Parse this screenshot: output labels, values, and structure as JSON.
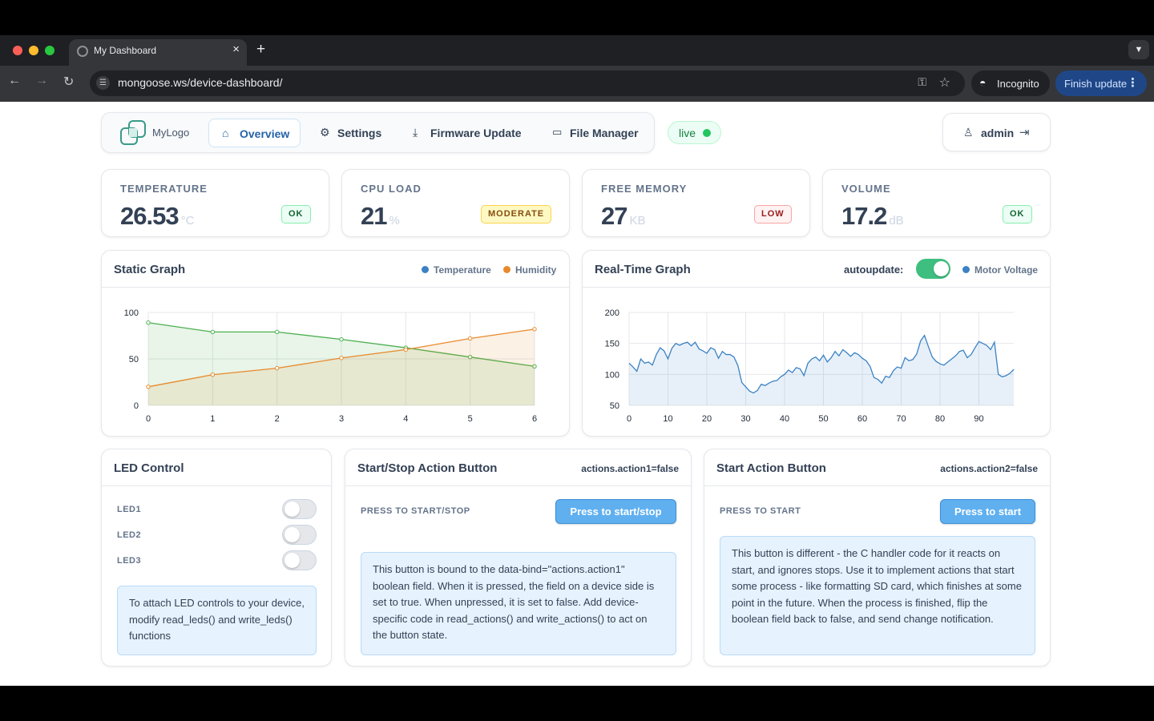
{
  "browser": {
    "tab_title": "My Dashboard",
    "url": "mongoose.ws/device-dashboard/",
    "incognito_label": "Incognito",
    "finish_update_label": "Finish update"
  },
  "nav": {
    "logo_text": "MyLogo",
    "items": [
      {
        "label": "Overview",
        "icon": "home-icon",
        "active": true
      },
      {
        "label": "Settings",
        "icon": "gear-icon",
        "active": false
      },
      {
        "label": "Firmware Update",
        "icon": "download-icon",
        "active": false
      },
      {
        "label": "File Manager",
        "icon": "folder-icon",
        "active": false
      }
    ],
    "status_label": "live",
    "user_name": "admin"
  },
  "stats": [
    {
      "title": "TEMPERATURE",
      "value": "26.53",
      "unit": "°C",
      "badge": "OK"
    },
    {
      "title": "CPU LOAD",
      "value": "21",
      "unit": "%",
      "badge": "MODERATE"
    },
    {
      "title": "FREE MEMORY",
      "value": "27",
      "unit": "KB",
      "badge": "LOW"
    },
    {
      "title": "VOLUME",
      "value": "17.2",
      "unit": "dB",
      "badge": "OK"
    }
  ],
  "colors": {
    "temperature": "#3b82c4",
    "humidity": "#e8892c",
    "static_green": "#4caf50",
    "voltage": "#3b82c4"
  },
  "static_graph": {
    "title": "Static Graph",
    "legend": [
      "Temperature",
      "Humidity"
    ]
  },
  "realtime_graph": {
    "title": "Real-Time Graph",
    "autoupdate_label": "autoupdate:",
    "autoupdate_on": true,
    "legend": [
      "Motor Voltage"
    ]
  },
  "chart_data": [
    {
      "type": "area",
      "x": [
        0,
        1,
        2,
        3,
        4,
        5,
        6
      ],
      "series": [
        {
          "name": "Temperature",
          "values": [
            89,
            79,
            79,
            71,
            62,
            52,
            42
          ]
        },
        {
          "name": "Humidity",
          "values": [
            20,
            33,
            40,
            51,
            60,
            72,
            82
          ]
        }
      ],
      "ylim": [
        0,
        100
      ],
      "yticks": [
        0,
        50,
        100
      ],
      "xticks": [
        0,
        1,
        2,
        3,
        4,
        5,
        6
      ],
      "grid": true
    },
    {
      "type": "area",
      "x_start": 0,
      "x_step": 1,
      "series": [
        {
          "name": "Motor Voltage",
          "values": [
            118,
            112,
            105,
            125,
            118,
            120,
            115,
            132,
            143,
            138,
            125,
            142,
            150,
            147,
            150,
            152,
            146,
            152,
            141,
            138,
            134,
            143,
            140,
            126,
            137,
            132,
            132,
            128,
            114,
            87,
            80,
            73,
            70,
            74,
            84,
            82,
            86,
            89,
            90,
            96,
            100,
            107,
            103,
            111,
            109,
            98,
            118,
            125,
            128,
            122,
            131,
            120,
            127,
            137,
            130,
            140,
            135,
            129,
            135,
            132,
            126,
            122,
            113,
            95,
            92,
            86,
            97,
            95,
            106,
            112,
            110,
            127,
            122,
            124,
            133,
            154,
            163,
            145,
            128,
            121,
            117,
            115,
            120,
            125,
            130,
            137,
            139,
            127,
            132,
            143,
            153,
            150,
            147,
            140,
            152,
            100,
            96,
            98,
            102,
            108
          ]
        }
      ],
      "ylim": [
        50,
        200
      ],
      "yticks": [
        50,
        100,
        150,
        200
      ],
      "xticks": [
        0,
        10,
        20,
        30,
        40,
        50,
        60,
        70,
        80,
        90
      ],
      "grid": true
    }
  ],
  "led_control": {
    "title": "LED Control",
    "leds": [
      {
        "label": "LED1",
        "on": false
      },
      {
        "label": "LED2",
        "on": false
      },
      {
        "label": "LED3",
        "on": false
      }
    ],
    "info": "To attach LED controls to your device, modify read_leds() and write_leds() functions"
  },
  "action1": {
    "title": "Start/Stop Action Button",
    "meta": "actions.action1=false",
    "press_label": "PRESS TO START/STOP",
    "button_label": "Press to start/stop",
    "info": "This button is bound to the data-bind=\"actions.action1\" boolean field. When it is pressed, the field on a device side is set to true. When unpressed, it is set to false. Add device-specific code in read_actions() and write_actions() to act on the button state."
  },
  "action2": {
    "title": "Start Action Button",
    "meta": "actions.action2=false",
    "press_label": "PRESS TO START",
    "button_label": "Press to start",
    "info": "This button is different - the C handler code for it reacts on start, and ignores stops. Use it to implement actions that start some process - like formatting SD card, which finishes at some point in the future. When the process is finished, flip the boolean field back to false, and send change notification."
  }
}
